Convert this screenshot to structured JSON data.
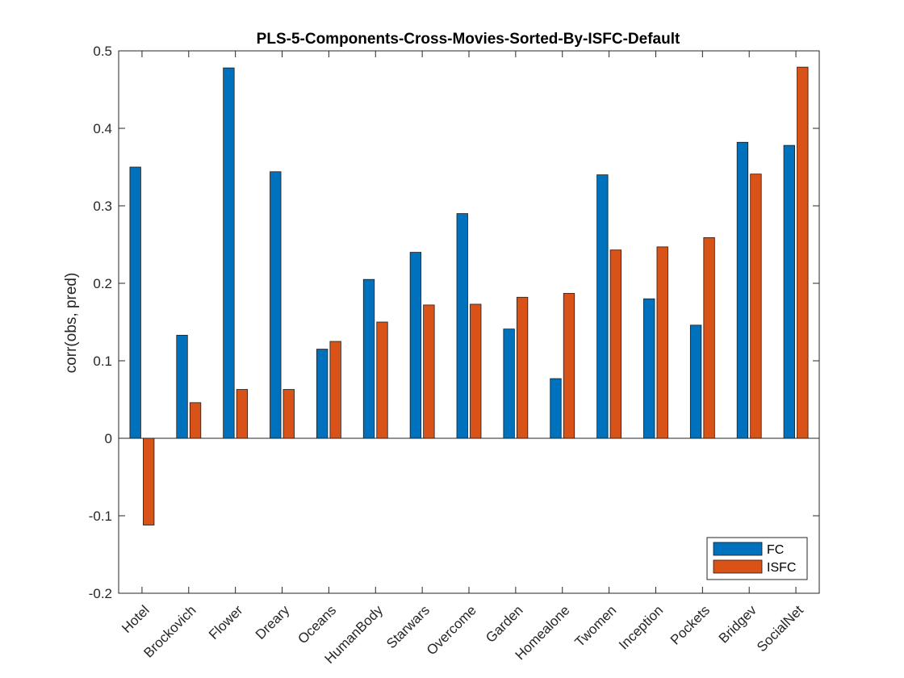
{
  "chart_data": {
    "type": "bar",
    "title": "PLS-5-Components-Cross-Movies-Sorted-By-ISFC-Default",
    "xlabel": "",
    "ylabel": "corr(obs, pred)",
    "ylim": [
      -0.2,
      0.5
    ],
    "yticks": [
      "-0.2",
      "-0.1",
      "0",
      "0.1",
      "0.2",
      "0.3",
      "0.4",
      "0.5"
    ],
    "categories": [
      "Hotel",
      "Brockovich",
      "Flower",
      "Dreary",
      "Oceans",
      "HumanBody",
      "Starwars",
      "Overcome",
      "Garden",
      "Homealone",
      "Twomen",
      "Inception",
      "Pockets",
      "Bridgev",
      "SocialNet"
    ],
    "series": [
      {
        "name": "FC",
        "color": "#0072BD",
        "values": [
          0.35,
          0.133,
          0.478,
          0.344,
          0.115,
          0.205,
          0.24,
          0.29,
          0.141,
          0.077,
          0.34,
          0.18,
          0.146,
          0.382,
          0.378
        ]
      },
      {
        "name": "ISFC",
        "color": "#D95319",
        "values": [
          -0.112,
          0.046,
          0.063,
          0.063,
          0.125,
          0.15,
          0.172,
          0.173,
          0.182,
          0.187,
          0.243,
          0.247,
          0.259,
          0.341,
          0.479
        ]
      }
    ],
    "legend_position": "bottom-right",
    "grid": false
  }
}
